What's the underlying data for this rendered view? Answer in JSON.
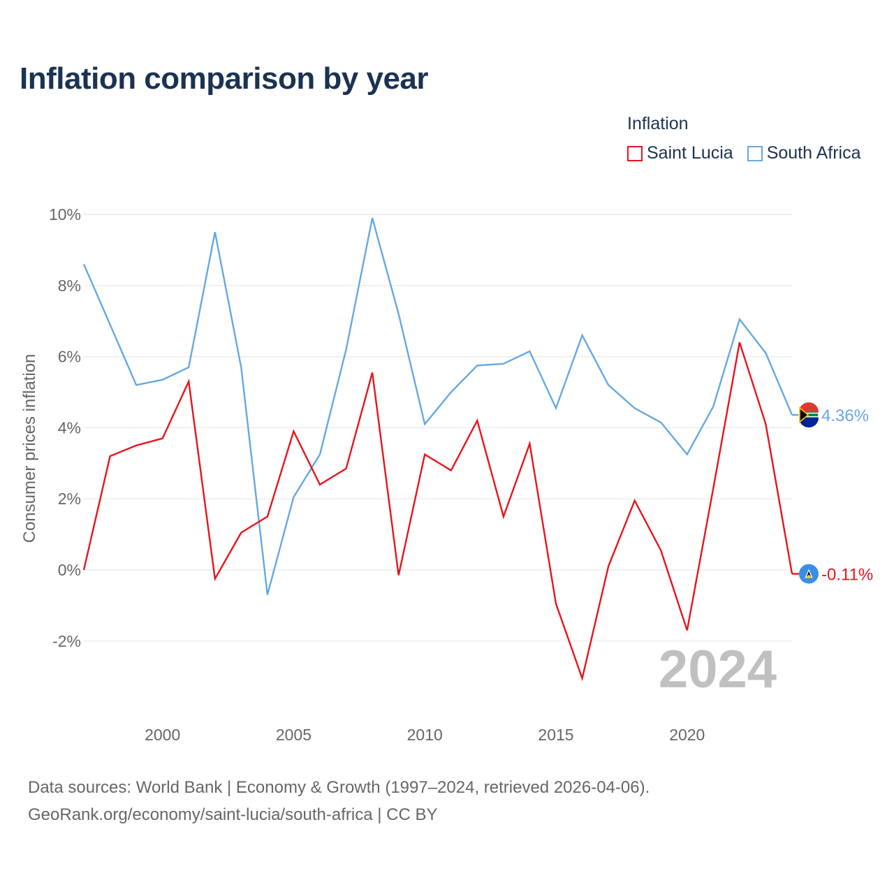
{
  "title": "Inflation comparison by year",
  "legend": {
    "title": "Inflation",
    "items": [
      {
        "label": "Saint Lucia",
        "color": "#e8141c"
      },
      {
        "label": "South Africa",
        "color": "#65a8e3"
      }
    ]
  },
  "year_watermark": "2024",
  "source": {
    "line1": "Data sources: World Bank | Economy & Growth (1997–2024, retrieved 2026-04-06).",
    "line2": "GeoRank.org/economy/saint-lucia/south-africa | CC BY"
  },
  "chart_data": {
    "type": "line",
    "ylabel": "Consumer prices inflation",
    "xlabel": "",
    "xlim": [
      1997,
      2024
    ],
    "ylim": [
      -4,
      10
    ],
    "yticks": [
      -2,
      0,
      2,
      4,
      6,
      8,
      10
    ],
    "ytick_labels": [
      "-2%",
      "0%",
      "2%",
      "4%",
      "6%",
      "8%",
      "10%"
    ],
    "xticks": [
      2000,
      2005,
      2010,
      2015,
      2020
    ],
    "xtick_labels": [
      "2000",
      "2005",
      "2010",
      "2015",
      "2020"
    ],
    "x": [
      1997,
      1998,
      1999,
      2000,
      2001,
      2002,
      2003,
      2004,
      2005,
      2006,
      2007,
      2008,
      2009,
      2010,
      2011,
      2012,
      2013,
      2014,
      2015,
      2016,
      2017,
      2018,
      2019,
      2020,
      2021,
      2022,
      2023,
      2024
    ],
    "series": [
      {
        "name": "South Africa",
        "color": "#65a8e3",
        "end_label": "4.36%",
        "values": [
          8.6,
          6.9,
          5.2,
          5.35,
          5.7,
          9.5,
          5.7,
          -0.7,
          2.05,
          3.25,
          6.2,
          9.9,
          7.2,
          4.1,
          5.0,
          5.75,
          5.8,
          6.15,
          4.55,
          6.6,
          5.2,
          4.55,
          4.15,
          3.25,
          4.6,
          7.05,
          6.1,
          4.36
        ]
      },
      {
        "name": "Saint Lucia",
        "color": "#e8141c",
        "end_label": "-0.11%",
        "values": [
          0.0,
          3.2,
          3.5,
          3.7,
          5.3,
          -0.25,
          1.05,
          1.5,
          3.9,
          2.4,
          2.85,
          5.55,
          -0.15,
          3.25,
          2.8,
          4.2,
          1.5,
          3.55,
          -0.95,
          -3.05,
          0.1,
          1.95,
          0.55,
          -1.7,
          2.3,
          6.4,
          4.1,
          -0.11
        ]
      }
    ]
  }
}
